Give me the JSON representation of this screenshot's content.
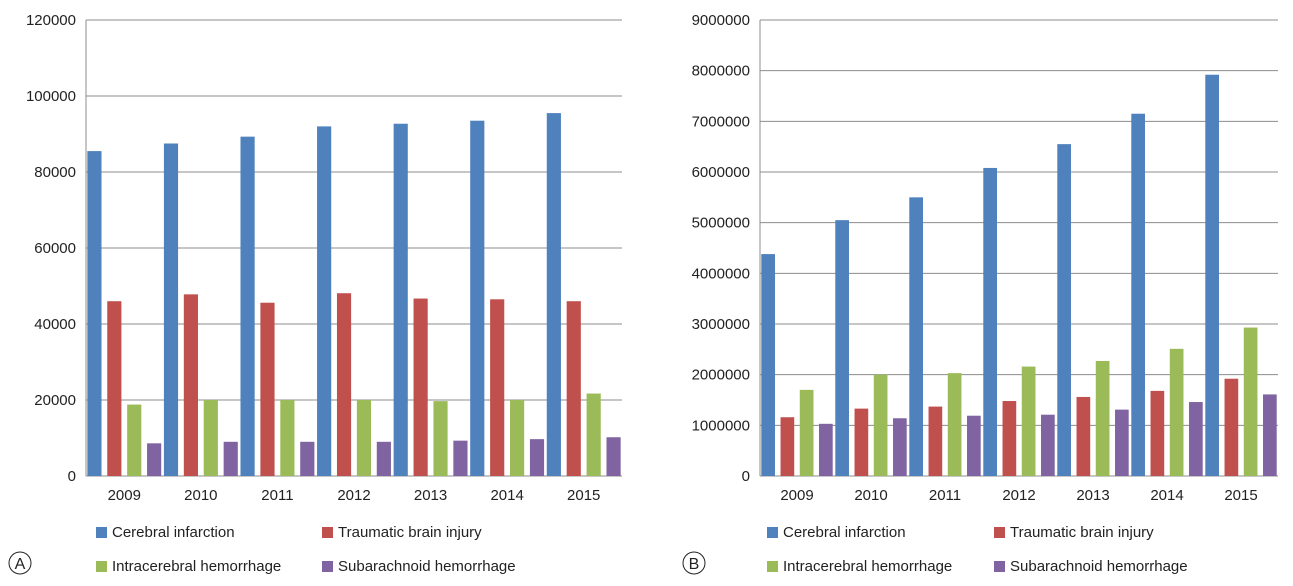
{
  "colors": {
    "cerebral_infarction": "#4F81BD",
    "traumatic_brain_injury": "#C0504D",
    "intracerebral_hemorrhage": "#9BBB59",
    "subarachnoid_hemorrhage": "#8064A2",
    "gridline": "#8c8c8c",
    "axis": "#8c8c8c"
  },
  "chart_data": [
    {
      "panel_label": "A",
      "type": "bar",
      "categories": [
        "2009",
        "2010",
        "2011",
        "2012",
        "2013",
        "2014",
        "2015"
      ],
      "ylim": [
        0,
        120000
      ],
      "yticks": [
        "0",
        "20000",
        "40000",
        "60000",
        "80000",
        "100000",
        "120000"
      ],
      "ytick_values": [
        0,
        20000,
        40000,
        60000,
        80000,
        100000,
        120000
      ],
      "grid": true,
      "legend_position": "bottom",
      "series": [
        {
          "name": "Cerebral infarction",
          "color_key": "cerebral_infarction",
          "values": [
            85500,
            87500,
            89300,
            92000,
            92700,
            93500,
            95500
          ]
        },
        {
          "name": "Traumatic brain injury",
          "color_key": "traumatic_brain_injury",
          "values": [
            46000,
            47800,
            45600,
            48100,
            46700,
            46500,
            46000
          ]
        },
        {
          "name": "Intracerebral hemorrhage",
          "color_key": "intracerebral_hemorrhage",
          "values": [
            18800,
            20000,
            20000,
            20000,
            19700,
            20000,
            21700
          ]
        },
        {
          "name": "Subarachnoid hemorrhage",
          "color_key": "subarachnoid_hemorrhage",
          "values": [
            8600,
            9000,
            9000,
            9000,
            9300,
            9700,
            10200
          ]
        }
      ]
    },
    {
      "panel_label": "B",
      "type": "bar",
      "categories": [
        "2009",
        "2010",
        "2011",
        "2012",
        "2013",
        "2014",
        "2015"
      ],
      "ylim": [
        0,
        9000000
      ],
      "yticks": [
        "0",
        "1000000",
        "2000000",
        "3000000",
        "4000000",
        "5000000",
        "6000000",
        "7000000",
        "8000000",
        "9000000"
      ],
      "ytick_values": [
        0,
        1000000,
        2000000,
        3000000,
        4000000,
        5000000,
        6000000,
        7000000,
        8000000,
        9000000
      ],
      "grid": true,
      "legend_position": "bottom",
      "series": [
        {
          "name": "Cerebral infarction",
          "color_key": "cerebral_infarction",
          "values": [
            4380000,
            5050000,
            5500000,
            6080000,
            6550000,
            7150000,
            7920000
          ]
        },
        {
          "name": "Traumatic brain injury",
          "color_key": "traumatic_brain_injury",
          "values": [
            1160000,
            1330000,
            1370000,
            1480000,
            1560000,
            1680000,
            1920000
          ]
        },
        {
          "name": "Intracerebral hemorrhage",
          "color_key": "intracerebral_hemorrhage",
          "values": [
            1700000,
            2000000,
            2030000,
            2160000,
            2270000,
            2510000,
            2930000
          ]
        },
        {
          "name": "Subarachnoid hemorrhage",
          "color_key": "subarachnoid_hemorrhage",
          "values": [
            1030000,
            1140000,
            1190000,
            1210000,
            1310000,
            1460000,
            1610000
          ]
        }
      ]
    }
  ]
}
